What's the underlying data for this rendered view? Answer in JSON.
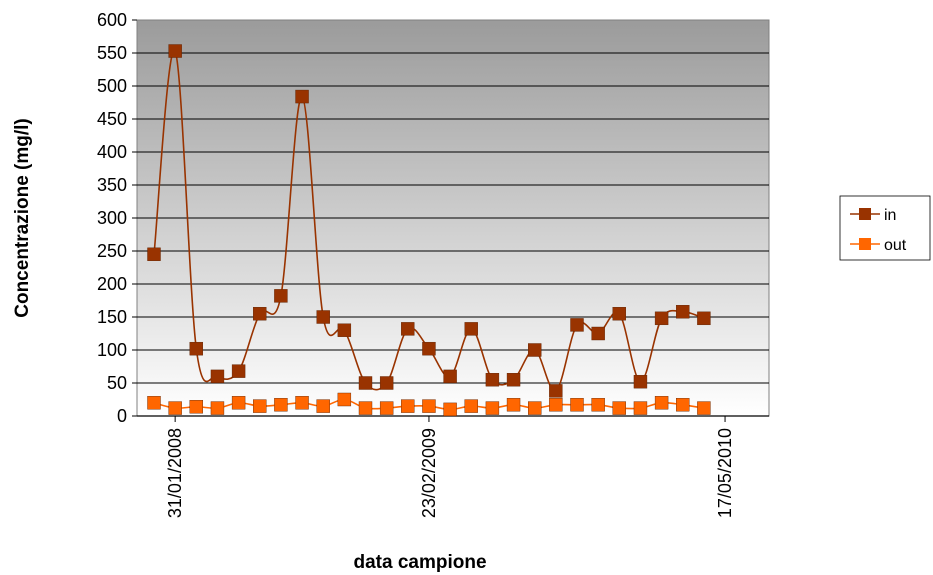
{
  "chart_data": {
    "type": "line",
    "title": "",
    "xlabel": "data campione",
    "ylabel": "Concentrazione (mg/l)",
    "ylim": [
      0,
      600
    ],
    "yticks": [
      0,
      50,
      100,
      150,
      200,
      250,
      300,
      350,
      400,
      450,
      500,
      550,
      600
    ],
    "x_tick_labels": [
      {
        "index": 1,
        "label": "31/01/2008"
      },
      {
        "index": 13,
        "label": "23/02/2009"
      },
      {
        "index": 27,
        "label": "17/05/2010"
      }
    ],
    "grid": true,
    "legend_position": "right",
    "series": [
      {
        "name": "in",
        "color": "#993300",
        "values": [
          245,
          553,
          102,
          60,
          68,
          155,
          182,
          484,
          150,
          130,
          50,
          50,
          132,
          102,
          60,
          132,
          55,
          55,
          100,
          38,
          138,
          125,
          155,
          52,
          148,
          158,
          148
        ]
      },
      {
        "name": "out",
        "color": "#FF6600",
        "values": [
          20,
          12,
          14,
          12,
          20,
          15,
          17,
          20,
          15,
          25,
          12,
          12,
          15,
          15,
          10,
          15,
          12,
          17,
          12,
          17,
          17,
          17,
          12,
          12,
          20,
          17,
          12
        ]
      }
    ]
  }
}
